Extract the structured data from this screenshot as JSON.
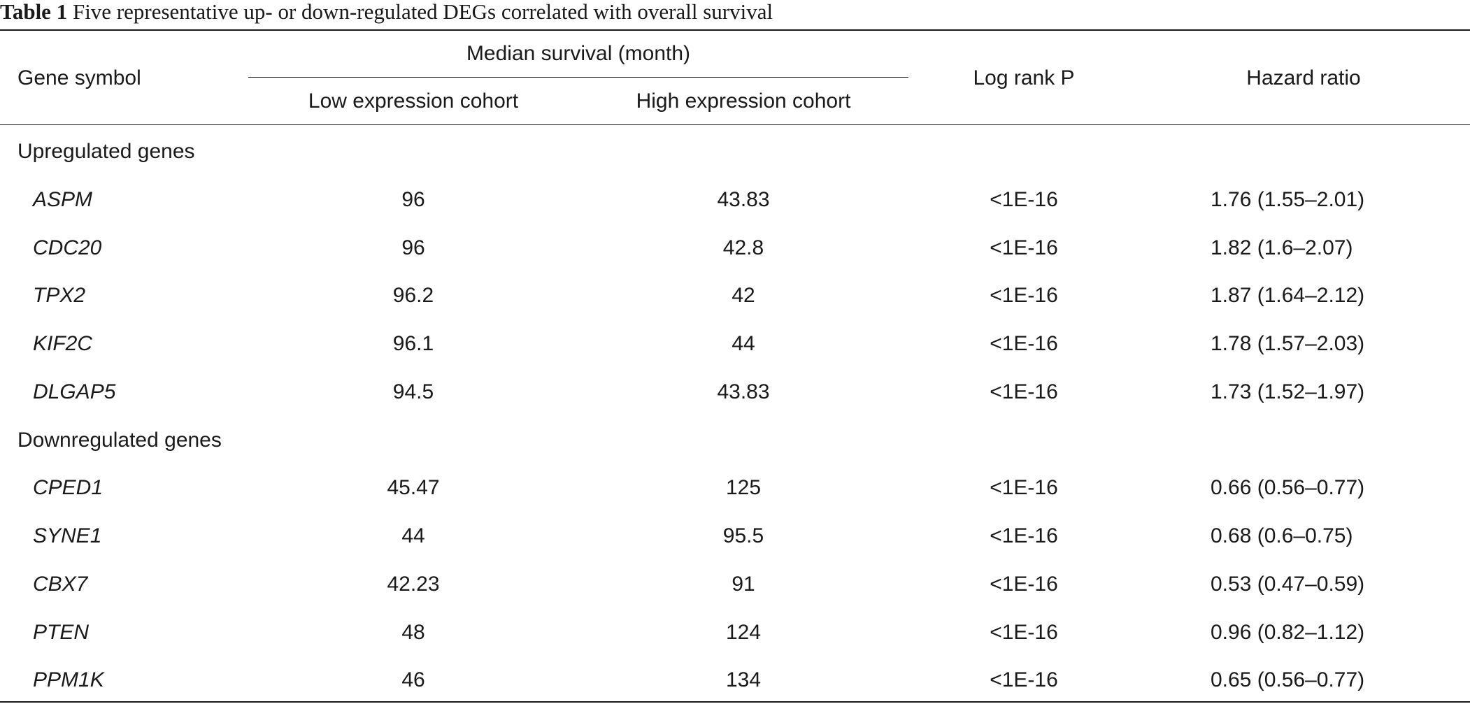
{
  "caption": {
    "label": "Table 1",
    "text": "Five representative up- or down-regulated DEGs correlated with overall survival"
  },
  "headers": {
    "gene": "Gene symbol",
    "median_group": "Median survival (month)",
    "low": "Low expression cohort",
    "high": "High expression cohort",
    "logrank": "Log rank P",
    "hazard": "Hazard ratio"
  },
  "groups": [
    {
      "label": "Upregulated genes",
      "rows": [
        {
          "gene": "ASPM",
          "low": "96",
          "high": "43.83",
          "p": "<1E-16",
          "hr": "1.76 (1.55–2.01)"
        },
        {
          "gene": "CDC20",
          "low": "96",
          "high": "42.8",
          "p": "<1E-16",
          "hr": "1.82 (1.6–2.07)"
        },
        {
          "gene": "TPX2",
          "low": "96.2",
          "high": "42",
          "p": "<1E-16",
          "hr": "1.87 (1.64–2.12)"
        },
        {
          "gene": "KIF2C",
          "low": "96.1",
          "high": "44",
          "p": "<1E-16",
          "hr": "1.78 (1.57–2.03)"
        },
        {
          "gene": "DLGAP5",
          "low": "94.5",
          "high": "43.83",
          "p": "<1E-16",
          "hr": "1.73 (1.52–1.97)"
        }
      ]
    },
    {
      "label": "Downregulated genes",
      "rows": [
        {
          "gene": "CPED1",
          "low": "45.47",
          "high": "125",
          "p": "<1E-16",
          "hr": "0.66 (0.56–0.77)"
        },
        {
          "gene": "SYNE1",
          "low": "44",
          "high": "95.5",
          "p": "<1E-16",
          "hr": "0.68 (0.6–0.75)"
        },
        {
          "gene": "CBX7",
          "low": "42.23",
          "high": "91",
          "p": "<1E-16",
          "hr": "0.53 (0.47–0.59)"
        },
        {
          "gene": "PTEN",
          "low": "48",
          "high": "124",
          "p": "<1E-16",
          "hr": "0.96 (0.82–1.12)"
        },
        {
          "gene": "PPM1K",
          "low": "46",
          "high": "134",
          "p": "<1E-16",
          "hr": "0.65 (0.56–0.77)"
        }
      ]
    }
  ]
}
